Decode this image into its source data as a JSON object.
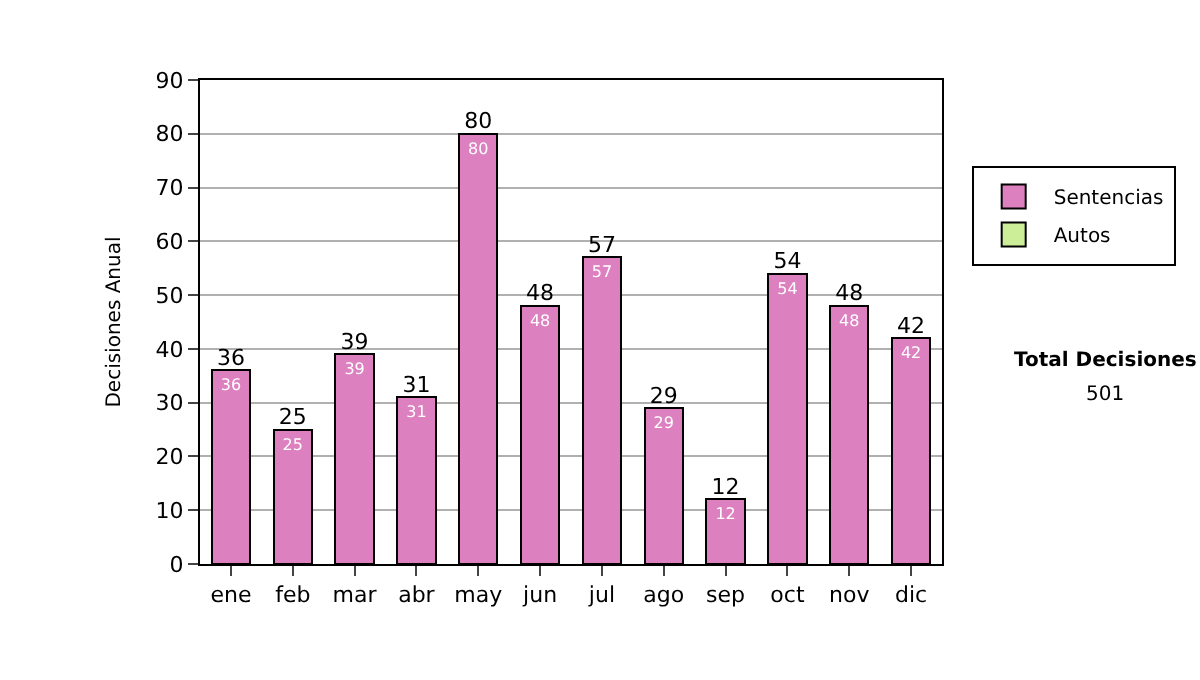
{
  "chart_data": {
    "type": "bar",
    "ylabel": "Decisiones Anual",
    "categories": [
      "ene",
      "feb",
      "mar",
      "abr",
      "may",
      "jun",
      "jul",
      "ago",
      "sep",
      "oct",
      "nov",
      "dic"
    ],
    "series": [
      {
        "name": "Sentencias",
        "color": "#dd80c0",
        "values": [
          36,
          25,
          39,
          31,
          80,
          48,
          57,
          29,
          12,
          54,
          48,
          42
        ]
      },
      {
        "name": "Autos",
        "color": "#ccee99",
        "values": [
          null,
          null,
          null,
          null,
          null,
          null,
          null,
          null,
          null,
          null,
          null,
          null
        ]
      }
    ],
    "stacked": true,
    "data_labels": true,
    "totals": [
      "36",
      "25",
      "39",
      "31",
      "80",
      "48",
      "57",
      "29",
      "12",
      "54",
      "48",
      "42"
    ],
    "ylim": [
      0,
      90
    ],
    "yticks": [
      0,
      10,
      20,
      30,
      40,
      50,
      60,
      70,
      80,
      90
    ],
    "grid": "y",
    "legend": "right",
    "annotations": [
      "Total Decisiones",
      "501"
    ]
  }
}
